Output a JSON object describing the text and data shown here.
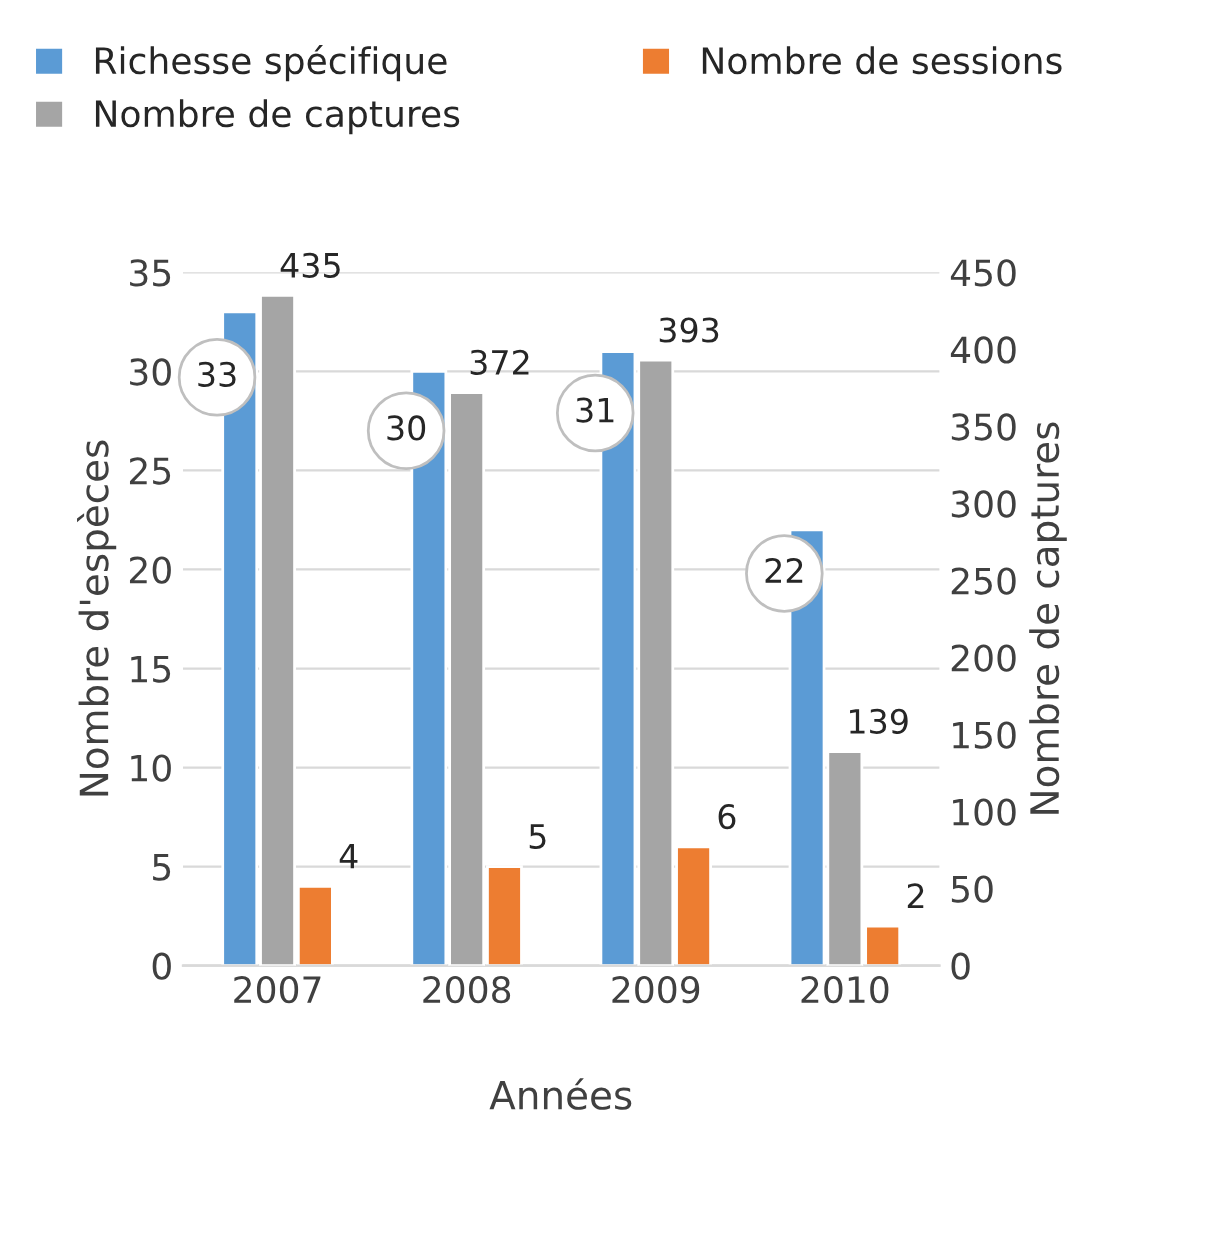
{
  "chart_data": {
    "type": "bar",
    "xlabel": "Années",
    "ylabel": "Nombre d'espèces",
    "y2label": "Nombre de captures",
    "categories": [
      "2007",
      "2008",
      "2009",
      "2010"
    ],
    "series": [
      {
        "name": "Richesse spécifique",
        "color": "#5b9bd5",
        "values": [
          33,
          30,
          31,
          22
        ]
      },
      {
        "name": "Nombre de captures",
        "color": "#a5a5a5",
        "values": [
          435,
          372,
          393,
          139
        ],
        "axis": "y2"
      },
      {
        "name": "Nombre de sessions",
        "color": "#ed7d31",
        "values": [
          4,
          5,
          6,
          2
        ]
      }
    ],
    "ylim": [
      0,
      35
    ],
    "yticks": [
      0,
      5,
      10,
      15,
      20,
      25,
      30,
      35
    ],
    "y2lim": [
      0,
      450
    ],
    "y2ticks": [
      0,
      50,
      100,
      150,
      200,
      250,
      300,
      350,
      400,
      450
    ],
    "grid": "y",
    "legend": "top",
    "data_labels": true
  }
}
